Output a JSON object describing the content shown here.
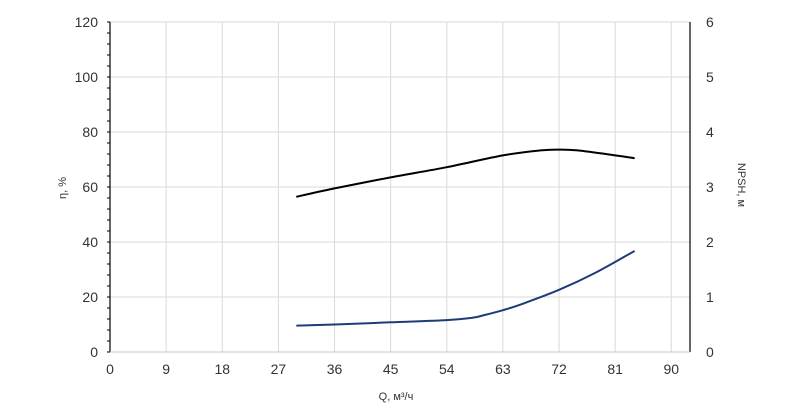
{
  "chart_data": {
    "type": "line",
    "xlabel": "Q, м³/ч",
    "ylabel_left": "η, %",
    "ylabel_right": "NPSH, м",
    "xlim": [
      0,
      93
    ],
    "ylim_left": [
      0,
      120
    ],
    "ylim_right": [
      0,
      6
    ],
    "x_ticks": [
      0,
      9,
      18,
      27,
      36,
      45,
      54,
      63,
      72,
      81,
      90
    ],
    "y_ticks_left": [
      0,
      20,
      40,
      60,
      80,
      100,
      120
    ],
    "y_ticks_right": [
      0,
      1,
      2,
      3,
      4,
      5,
      6
    ],
    "grid": true,
    "colors": {
      "efficiency": "#000000",
      "npsh": "#1f3c78",
      "grid": "#d9d9d9"
    },
    "series": [
      {
        "axis": "left",
        "points": [
          [
            30,
            56.5
          ],
          [
            36,
            59.5
          ],
          [
            45,
            63.5
          ],
          [
            54,
            67.2
          ],
          [
            63,
            71.5
          ],
          [
            69,
            73.3
          ],
          [
            72,
            73.6
          ],
          [
            75,
            73.3
          ],
          [
            81,
            71.5
          ],
          [
            84,
            70.5
          ]
        ]
      },
      {
        "axis": "right",
        "points": [
          [
            30,
            0.48
          ],
          [
            36,
            0.5
          ],
          [
            45,
            0.54
          ],
          [
            54,
            0.58
          ],
          [
            58,
            0.62
          ],
          [
            60,
            0.67
          ],
          [
            63,
            0.76
          ],
          [
            66,
            0.87
          ],
          [
            72,
            1.13
          ],
          [
            78,
            1.45
          ],
          [
            84,
            1.83
          ]
        ]
      }
    ]
  }
}
